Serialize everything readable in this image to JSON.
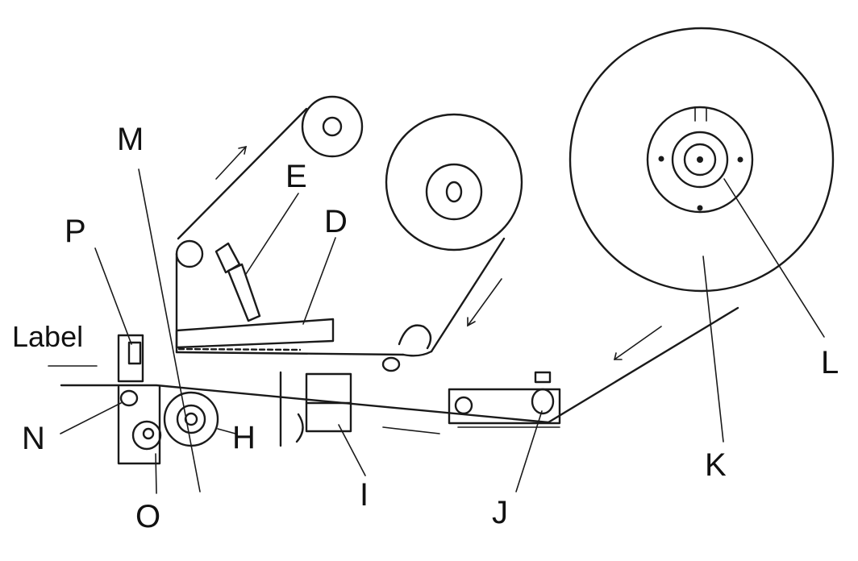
{
  "labels": {
    "label_word": "Label",
    "M": "M",
    "E": "E",
    "D": "D",
    "P": "P",
    "N": "N",
    "H": "H",
    "O": "O",
    "I": "I",
    "J": "J",
    "K": "K",
    "L": "L"
  },
  "colors": {
    "line": "#1a1a1a",
    "background": "#ffffff"
  }
}
